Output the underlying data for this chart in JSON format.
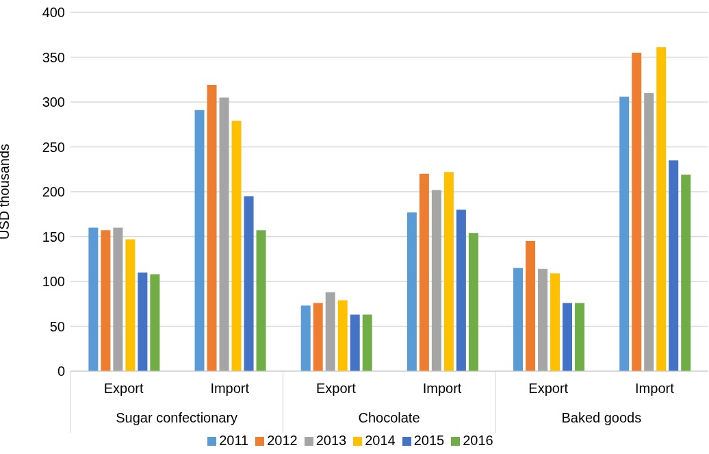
{
  "chart_data": {
    "type": "bar",
    "ylabel": "USD thousands",
    "categories": [
      "Export",
      "Import",
      "Export",
      "Import",
      "Export",
      "Import"
    ],
    "annotations": [
      "Sugar confectionary",
      "Chocolate",
      "Baked goods"
    ],
    "series": [
      {
        "name": "2011",
        "color": "#5b9bd5",
        "values": [
          160,
          291,
          73,
          177,
          115,
          306
        ]
      },
      {
        "name": "2012",
        "color": "#ed7d31",
        "values": [
          157,
          319,
          76,
          220,
          145,
          355
        ]
      },
      {
        "name": "2013",
        "color": "#a5a5a5",
        "values": [
          160,
          305,
          88,
          202,
          114,
          310
        ]
      },
      {
        "name": "2014",
        "color": "#ffc000",
        "values": [
          147,
          279,
          79,
          222,
          109,
          361
        ]
      },
      {
        "name": "2015",
        "color": "#4472c4",
        "values": [
          110,
          195,
          63,
          180,
          76,
          235
        ]
      },
      {
        "name": "2016",
        "color": "#70ad47",
        "values": [
          108,
          157,
          63,
          154,
          76,
          219
        ]
      }
    ],
    "ylim": [
      0,
      400
    ],
    "yticks": [
      0,
      50,
      100,
      150,
      200,
      250,
      300,
      350,
      400
    ],
    "grid": "y",
    "legend": "bottom"
  }
}
